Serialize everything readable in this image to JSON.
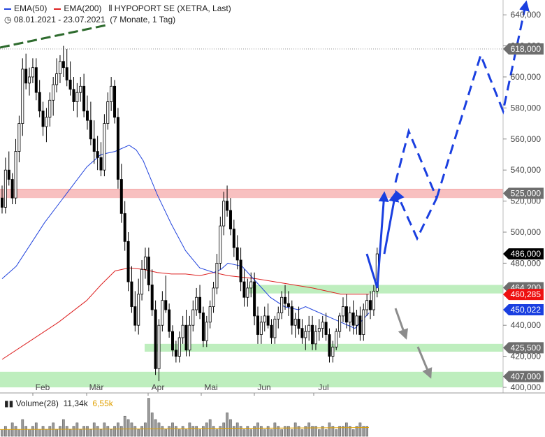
{
  "header": {
    "ema50_label": "EMA(50)",
    "ema200_label": "EMA(200)",
    "instrument": "HYPOPORT SE (XETRA, Last)",
    "date_range": "08.01.2021 - 23.07.2021",
    "period": "(7 Monate, 1 Tag)",
    "volume_label": "Volume(28)",
    "volume_value1": "11,34k",
    "volume_value2": "6,55k"
  },
  "colors": {
    "ema50": "#2244dd",
    "ema200": "#dd2222",
    "volume_v2": "#e0a000",
    "zone_green": "#b7ecb7",
    "zone_red": "#f7b5b5",
    "projection_blue": "#1a3fe0",
    "trend_green": "#2e6b2e",
    "arrow_gray": "#8c8c8c",
    "tag_gray": "#6e6e6e",
    "tag_black": "#000000",
    "tag_red": "#ee1111",
    "tag_blue": "#1a3fe0"
  },
  "chart_data": {
    "type": "candlestick",
    "title": "HYPOPORT SE (XETRA, Last)",
    "period": "08.01.2021 - 23.07.2021",
    "x_tick_labels": [
      "Feb",
      "Mär",
      "Apr",
      "Mai",
      "Jun",
      "Jul"
    ],
    "y_ticks": [
      400,
      420,
      440,
      460,
      480,
      500,
      520,
      540,
      560,
      580,
      600,
      620,
      640
    ],
    "y_tick_labels": [
      "400,000",
      "420,000",
      "440,000",
      "460,000",
      "480,000",
      "500,000",
      "520,000",
      "540,000",
      "560,000",
      "580,000",
      "600,000",
      "620,000",
      "640,000"
    ],
    "ylim": [
      398,
      645
    ],
    "price_tags": [
      {
        "value": 618.0,
        "label": "618,000",
        "style": "gray"
      },
      {
        "value": 525.0,
        "label": "525,000",
        "style": "gray"
      },
      {
        "value": 486.0,
        "label": "486,000",
        "style": "black"
      },
      {
        "value": 464.2,
        "label": "464,200",
        "style": "gray"
      },
      {
        "value": 460.285,
        "label": "460,285",
        "style": "red"
      },
      {
        "value": 450.022,
        "label": "450,022",
        "style": "blue"
      },
      {
        "value": 425.5,
        "label": "425,500",
        "style": "gray"
      },
      {
        "value": 407.0,
        "label": "407,000",
        "style": "gray"
      }
    ],
    "zones": [
      {
        "kind": "resistance",
        "low": 522,
        "high": 527.5
      },
      {
        "kind": "support",
        "low": 460.5,
        "high": 466
      },
      {
        "kind": "support",
        "low": 423,
        "high": 428
      },
      {
        "kind": "support",
        "low": 400,
        "high": 410
      }
    ],
    "reference_line": 618.0,
    "ohlc": [
      [
        522,
        530,
        512,
        516
      ],
      [
        516,
        548,
        512,
        540
      ],
      [
        540,
        552,
        530,
        534
      ],
      [
        534,
        538,
        518,
        522
      ],
      [
        522,
        560,
        518,
        552
      ],
      [
        552,
        575,
        545,
        570
      ],
      [
        570,
        612,
        562,
        605
      ],
      [
        605,
        615,
        592,
        596
      ],
      [
        596,
        606,
        588,
        600
      ],
      [
        600,
        612,
        596,
        606
      ],
      [
        606,
        612,
        585,
        590
      ],
      [
        590,
        598,
        574,
        578
      ],
      [
        578,
        584,
        562,
        568
      ],
      [
        568,
        580,
        558,
        574
      ],
      [
        574,
        590,
        568,
        585
      ],
      [
        585,
        600,
        575,
        595
      ],
      [
        595,
        612,
        590,
        602
      ],
      [
        602,
        614,
        596,
        610
      ],
      [
        610,
        620,
        600,
        606
      ],
      [
        606,
        618,
        594,
        598
      ],
      [
        598,
        610,
        588,
        592
      ],
      [
        592,
        600,
        578,
        584
      ],
      [
        584,
        596,
        574,
        590
      ],
      [
        590,
        600,
        584,
        594
      ],
      [
        594,
        602,
        574,
        578
      ],
      [
        578,
        588,
        566,
        572
      ],
      [
        572,
        584,
        556,
        560
      ],
      [
        560,
        572,
        544,
        552
      ],
      [
        552,
        562,
        540,
        548
      ],
      [
        548,
        558,
        536,
        540
      ],
      [
        540,
        576,
        536,
        570
      ],
      [
        570,
        590,
        566,
        584
      ],
      [
        584,
        600,
        578,
        594
      ],
      [
        594,
        598,
        570,
        574
      ],
      [
        574,
        580,
        528,
        534
      ],
      [
        534,
        544,
        506,
        512
      ],
      [
        512,
        520,
        488,
        494
      ],
      [
        494,
        500,
        462,
        468
      ],
      [
        468,
        478,
        448,
        452
      ],
      [
        452,
        462,
        436,
        440
      ],
      [
        440,
        470,
        434,
        460
      ],
      [
        460,
        482,
        456,
        476
      ],
      [
        476,
        490,
        470,
        484
      ],
      [
        484,
        490,
        462,
        466
      ],
      [
        466,
        476,
        446,
        450
      ],
      [
        450,
        456,
        408,
        412
      ],
      [
        412,
        444,
        404,
        440
      ],
      [
        440,
        462,
        436,
        456
      ],
      [
        456,
        472,
        448,
        450
      ],
      [
        450,
        454,
        432,
        436
      ],
      [
        436,
        440,
        420,
        424
      ],
      [
        424,
        430,
        416,
        420
      ],
      [
        420,
        436,
        416,
        432
      ],
      [
        432,
        446,
        428,
        440
      ],
      [
        440,
        450,
        420,
        424
      ],
      [
        424,
        446,
        420,
        440
      ],
      [
        440,
        456,
        436,
        450
      ],
      [
        450,
        464,
        446,
        458
      ],
      [
        458,
        466,
        444,
        448
      ],
      [
        448,
        452,
        426,
        430
      ],
      [
        430,
        446,
        426,
        442
      ],
      [
        442,
        456,
        438,
        452
      ],
      [
        452,
        468,
        448,
        464
      ],
      [
        464,
        486,
        460,
        480
      ],
      [
        480,
        510,
        476,
        504
      ],
      [
        504,
        526,
        498,
        520
      ],
      [
        520,
        530,
        510,
        514
      ],
      [
        514,
        522,
        498,
        502
      ],
      [
        502,
        508,
        484,
        490
      ],
      [
        490,
        498,
        476,
        482
      ],
      [
        482,
        490,
        462,
        468
      ],
      [
        468,
        476,
        452,
        458
      ],
      [
        458,
        470,
        452,
        464
      ],
      [
        464,
        474,
        458,
        468
      ],
      [
        468,
        474,
        440,
        446
      ],
      [
        446,
        452,
        428,
        434
      ],
      [
        434,
        446,
        428,
        442
      ],
      [
        442,
        452,
        436,
        446
      ],
      [
        446,
        454,
        438,
        440
      ],
      [
        440,
        444,
        428,
        432
      ],
      [
        432,
        446,
        428,
        444
      ],
      [
        444,
        452,
        438,
        448
      ],
      [
        448,
        462,
        444,
        458
      ],
      [
        458,
        466,
        450,
        454
      ],
      [
        454,
        462,
        446,
        452
      ],
      [
        452,
        456,
        434,
        440
      ],
      [
        440,
        448,
        432,
        444
      ],
      [
        444,
        452,
        434,
        438
      ],
      [
        438,
        444,
        428,
        432
      ],
      [
        432,
        440,
        424,
        436
      ],
      [
        436,
        446,
        430,
        440
      ],
      [
        440,
        446,
        424,
        428
      ],
      [
        428,
        440,
        424,
        436
      ],
      [
        436,
        444,
        430,
        438
      ],
      [
        438,
        446,
        432,
        442
      ],
      [
        442,
        448,
        430,
        434
      ],
      [
        434,
        438,
        416,
        420
      ],
      [
        420,
        430,
        416,
        426
      ],
      [
        426,
        438,
        424,
        436
      ],
      [
        436,
        448,
        432,
        446
      ],
      [
        446,
        458,
        442,
        452
      ],
      [
        452,
        460,
        438,
        442
      ],
      [
        442,
        452,
        436,
        448
      ],
      [
        448,
        456,
        434,
        440
      ],
      [
        440,
        450,
        434,
        446
      ],
      [
        446,
        452,
        430,
        434
      ],
      [
        434,
        454,
        430,
        450
      ],
      [
        450,
        460,
        446,
        456
      ],
      [
        456,
        462,
        444,
        450
      ],
      [
        450,
        466,
        446,
        462
      ],
      [
        462,
        490,
        458,
        486
      ]
    ],
    "ema50": [
      [
        0,
        470
      ],
      [
        10,
        478
      ],
      [
        20,
        492
      ],
      [
        30,
        506
      ],
      [
        40,
        518
      ],
      [
        50,
        530
      ],
      [
        60,
        542
      ],
      [
        70,
        550
      ],
      [
        80,
        552
      ],
      [
        90,
        556
      ],
      [
        95,
        553
      ],
      [
        100,
        546
      ],
      [
        110,
        524
      ],
      [
        120,
        505
      ],
      [
        130,
        488
      ],
      [
        140,
        477
      ],
      [
        150,
        474
      ],
      [
        155,
        476
      ],
      [
        160,
        480
      ],
      [
        170,
        478
      ],
      [
        180,
        468
      ],
      [
        190,
        458
      ],
      [
        200,
        452
      ],
      [
        210,
        450
      ],
      [
        215,
        452
      ],
      [
        220,
        450
      ],
      [
        230,
        446
      ],
      [
        240,
        442
      ],
      [
        250,
        438
      ],
      [
        260,
        448
      ]
    ],
    "ema200": [
      [
        0,
        418
      ],
      [
        20,
        430
      ],
      [
        40,
        442
      ],
      [
        60,
        456
      ],
      [
        70,
        466
      ],
      [
        80,
        475
      ],
      [
        90,
        477
      ],
      [
        100,
        476
      ],
      [
        110,
        474
      ],
      [
        120,
        473
      ],
      [
        130,
        473
      ],
      [
        140,
        472
      ],
      [
        150,
        474
      ],
      [
        160,
        472
      ],
      [
        180,
        470
      ],
      [
        200,
        467
      ],
      [
        220,
        464
      ],
      [
        240,
        460
      ],
      [
        260,
        460
      ]
    ],
    "volume": [
      2,
      3,
      2,
      4,
      3,
      2,
      5,
      3,
      2,
      3,
      4,
      2,
      3,
      2,
      3,
      4,
      2,
      3,
      5,
      3,
      2,
      3,
      4,
      2,
      3,
      3,
      2,
      4,
      3,
      2,
      4,
      3,
      2,
      3,
      4,
      3,
      6,
      5,
      4,
      3,
      2,
      3,
      4,
      11.34,
      7,
      5,
      4,
      3,
      2,
      3,
      4,
      3,
      2,
      3,
      2,
      4,
      3,
      3,
      2,
      3,
      4,
      5,
      3,
      2,
      3,
      4,
      7,
      5,
      3,
      4,
      3,
      2,
      3,
      2,
      3,
      4,
      3,
      2,
      3,
      2,
      4,
      3,
      2,
      3,
      3,
      2,
      4,
      3,
      2,
      3,
      4,
      3,
      3,
      2,
      3,
      2,
      4,
      3,
      2,
      3,
      3,
      4,
      3,
      2,
      3,
      4,
      3,
      3
    ],
    "volume_ma": 6.55,
    "projections": [
      {
        "style": "solid",
        "points": [
          [
            525,
            486
          ],
          [
            540,
            464
          ],
          [
            550,
            525
          ]
        ]
      },
      {
        "style": "solid",
        "points": [
          [
            550,
            486
          ],
          [
            566,
            525
          ]
        ]
      },
      {
        "style": "dashed",
        "points": [
          [
            566,
            532
          ],
          [
            585,
            565
          ],
          [
            625,
            522
          ],
          [
            597,
            496
          ],
          [
            567,
            526
          ]
        ]
      },
      {
        "style": "dashed",
        "points": [
          [
            625,
            522
          ],
          [
            688,
            614
          ],
          [
            720,
            578
          ],
          [
            753,
            648
          ]
        ]
      }
    ]
  }
}
